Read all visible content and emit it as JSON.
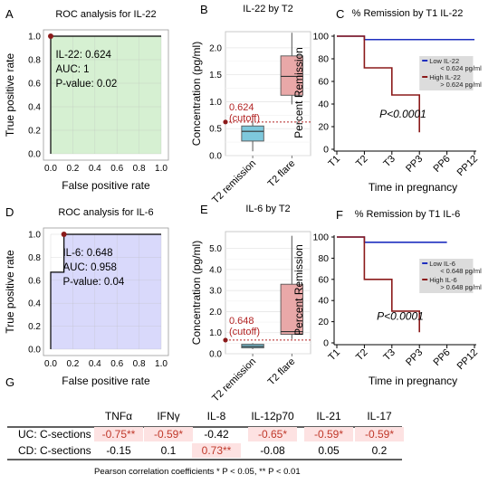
{
  "colors": {
    "roc_fill_a": "#d6f0d2",
    "roc_fill_d": "#d9d9fb",
    "roc_line": "#000000",
    "roc_point": "#8b1a1a",
    "remission_box": "#7ec8dc",
    "flare_box": "#e9a8a8",
    "cutoff": "#b22222",
    "low_line": "#1f2fbf",
    "high_line": "#8b1a1a",
    "legend_bg": "#dcdcdc",
    "grid": "#e6e6e6",
    "sig_bg": "#fde2e2",
    "sig_text": "#c0392b"
  },
  "panels": {
    "A": {
      "letter": "A",
      "title": "ROC analysis for IL-22",
      "xlabel": "False positive rate",
      "ylabel": "True positive rate",
      "ticks": [
        "0.0",
        "0.2",
        "0.4",
        "0.6",
        "0.8",
        "1.0"
      ],
      "info": [
        "IL-22: 0.624",
        "AUC: 1",
        "P-value: 0.02"
      ]
    },
    "B": {
      "letter": "B",
      "title": "IL-22 by T2",
      "ylabel": "Concentration (pg/ml)",
      "yticks": [
        "0.0",
        "0.5",
        "1.0",
        "1.5",
        "2.0"
      ],
      "categories": [
        "T2 remission",
        "T2 flare"
      ],
      "cutoff_value": "0.624",
      "cutoff_label": "(cutoff)"
    },
    "C": {
      "letter": "C",
      "title": "% Remission by T1 IL-22",
      "xlabel": "Time in pregnancy",
      "ylabel": "Percent Remission",
      "yticks": [
        "0",
        "20",
        "40",
        "60",
        "80",
        "100"
      ],
      "xticks": [
        "T1",
        "T2",
        "T3",
        "PP3",
        "PP6",
        "PP12"
      ],
      "legend": [
        {
          "name": "Low IL-22",
          "sub": "< 0.624 pg/ml"
        },
        {
          "name": "High IL-22",
          "sub": "> 0.624 pg/ml"
        }
      ],
      "p_label": "P<0.0001"
    },
    "D": {
      "letter": "D",
      "title": "ROC analysis for IL-6",
      "xlabel": "False positive rate",
      "ylabel": "True positive rate",
      "ticks": [
        "0.0",
        "0.2",
        "0.4",
        "0.6",
        "0.8",
        "1.0"
      ],
      "info": [
        "IL-6: 0.648",
        "AUC: 0.958",
        "P-value: 0.04"
      ]
    },
    "E": {
      "letter": "E",
      "title": "IL-6 by T2",
      "ylabel": "Concentration (pg/ml)",
      "yticks": [
        "0.0",
        "1.0",
        "2.0",
        "3.0",
        "4.0",
        "5.0"
      ],
      "categories": [
        "T2 remission",
        "T2 flare"
      ],
      "cutoff_value": "0.648",
      "cutoff_label": "(cutoff)"
    },
    "F": {
      "letter": "F",
      "title": "% Remission by T1 IL-6",
      "xlabel": "Time in pregnancy",
      "ylabel": "Percent Remission",
      "yticks": [
        "0",
        "20",
        "40",
        "60",
        "80",
        "100"
      ],
      "xticks": [
        "T1",
        "T2",
        "T3",
        "PP3",
        "PP6",
        "PP12"
      ],
      "legend": [
        {
          "name": "Low IL-6",
          "sub": "< 0.648 pg/ml"
        },
        {
          "name": "High IL-6",
          "sub": "> 0.648 pg/ml"
        }
      ],
      "p_label": "P<0.0001"
    },
    "G": {
      "letter": "G",
      "columns": [
        "TNFα",
        "IFNγ",
        "IL-8",
        "IL-12p70",
        "IL-21",
        "IL-17"
      ],
      "rows": [
        {
          "label": "UC: C-sections",
          "cells": [
            {
              "text": "-0.75**",
              "sig": true
            },
            {
              "text": "-0.59*",
              "sig": true
            },
            {
              "text": "-0.42",
              "sig": false
            },
            {
              "text": "-0.65*",
              "sig": true
            },
            {
              "text": "-0.59*",
              "sig": true
            },
            {
              "text": "-0.59*",
              "sig": true
            }
          ]
        },
        {
          "label": "CD: C-sections",
          "cells": [
            {
              "text": "-0.15",
              "sig": false
            },
            {
              "text": "0.1",
              "sig": false
            },
            {
              "text": "0.73**",
              "sig": true
            },
            {
              "text": "-0.08",
              "sig": false
            },
            {
              "text": "0.05",
              "sig": false
            },
            {
              "text": "0.2",
              "sig": false
            }
          ]
        }
      ],
      "footnote": "Pearson correlation coefficients * P < 0.05, ** P < 0.01"
    }
  },
  "chart_data": [
    {
      "panel": "A",
      "type": "line",
      "title": "ROC analysis for IL-22",
      "xlabel": "False positive rate",
      "ylabel": "True positive rate",
      "x": [
        0,
        0,
        1
      ],
      "y": [
        0,
        1,
        1
      ],
      "xlim": [
        0,
        1
      ],
      "ylim": [
        0,
        1
      ],
      "point": [
        0.0,
        1.0
      ],
      "grid": true
    },
    {
      "panel": "B",
      "type": "box",
      "title": "IL-22 by T2",
      "ylabel": "Concentration (pg/ml)",
      "ylim": [
        0,
        2.3
      ],
      "categories": [
        "T2 remission",
        "T2 flare"
      ],
      "boxes": [
        {
          "min": 0.08,
          "q1": 0.27,
          "median": 0.45,
          "q3": 0.55,
          "max": 0.72
        },
        {
          "min": 0.95,
          "q1": 1.12,
          "median": 1.47,
          "q3": 1.85,
          "max": 2.28
        }
      ],
      "cutoff": 0.624
    },
    {
      "panel": "C",
      "type": "line",
      "title": "% Remission by T1 IL-22",
      "xlabel": "Time in pregnancy",
      "ylabel": "Percent Remission",
      "categories": [
        "T1",
        "T2",
        "T3",
        "PP3",
        "PP6",
        "PP12"
      ],
      "ylim": [
        0,
        100
      ],
      "series": [
        {
          "name": "Low IL-22",
          "x": [
            0,
            1,
            5
          ],
          "y": [
            100,
            97,
            97
          ]
        },
        {
          "name": "High IL-22",
          "x": [
            0,
            1,
            2,
            3
          ],
          "y": [
            100,
            72,
            48,
            15
          ]
        }
      ]
    },
    {
      "panel": "D",
      "type": "line",
      "title": "ROC analysis for IL-6",
      "xlabel": "False positive rate",
      "ylabel": "True positive rate",
      "x": [
        0,
        0,
        0.12,
        0.12,
        1
      ],
      "y": [
        0,
        0.67,
        0.67,
        1,
        1
      ],
      "xlim": [
        0,
        1
      ],
      "ylim": [
        0,
        1
      ],
      "point": [
        0.12,
        1.0
      ],
      "grid": true
    },
    {
      "panel": "E",
      "type": "box",
      "title": "IL-6 by T2",
      "ylabel": "Concentration (pg/ml)",
      "ylim": [
        0,
        5.8
      ],
      "categories": [
        "T2 remission",
        "T2 flare"
      ],
      "boxes": [
        {
          "min": 0.22,
          "q1": 0.28,
          "median": 0.35,
          "q3": 0.45,
          "max": 0.5
        },
        {
          "min": 0.7,
          "q1": 0.92,
          "median": 1.05,
          "q3": 3.3,
          "max": 5.6
        }
      ],
      "cutoff": 0.648
    },
    {
      "panel": "F",
      "type": "line",
      "title": "% Remission by T1 IL-6",
      "xlabel": "Time in pregnancy",
      "ylabel": "Percent Remission",
      "categories": [
        "T1",
        "T2",
        "T3",
        "PP3",
        "PP6",
        "PP12"
      ],
      "ylim": [
        0,
        100
      ],
      "series": [
        {
          "name": "Low IL-6",
          "x": [
            0,
            1,
            4
          ],
          "y": [
            100,
            95,
            95
          ]
        },
        {
          "name": "High IL-6",
          "x": [
            0,
            1,
            2,
            3
          ],
          "y": [
            100,
            60,
            30,
            10
          ]
        }
      ]
    },
    {
      "panel": "G",
      "type": "table",
      "columns": [
        "TNFα",
        "IFNγ",
        "IL-8",
        "IL-12p70",
        "IL-21",
        "IL-17"
      ],
      "rows": [
        {
          "label": "UC: C-sections",
          "values": [
            -0.75,
            -0.59,
            -0.42,
            -0.65,
            -0.59,
            -0.59
          ]
        },
        {
          "label": "CD: C-sections",
          "values": [
            -0.15,
            0.1,
            0.73,
            -0.08,
            0.05,
            0.2
          ]
        }
      ]
    }
  ]
}
